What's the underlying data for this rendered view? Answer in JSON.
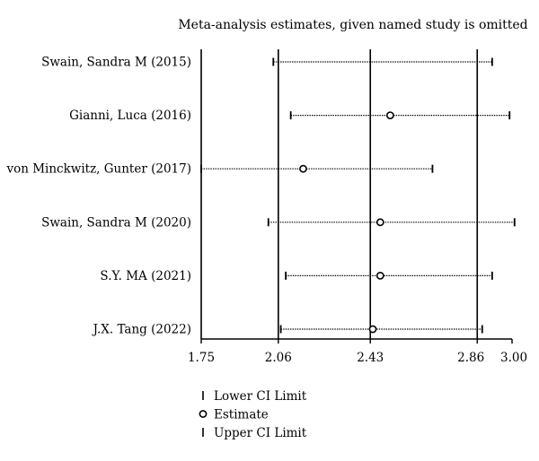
{
  "chart_data": {
    "type": "forest",
    "title": "Meta-analysis estimates, given named study is omitted",
    "xlim": [
      1.75,
      3.0
    ],
    "ticks": [
      {
        "value": 1.75,
        "label": "1.75"
      },
      {
        "value": 2.06,
        "label": "2.06"
      },
      {
        "value": 2.43,
        "label": "2.43"
      },
      {
        "value": 2.86,
        "label": "2.86"
      },
      {
        "value": 3.0,
        "label": "3.00"
      }
    ],
    "reference_lines": [
      2.06,
      2.43,
      2.86
    ],
    "studies": [
      {
        "label": "Swain, Sandra M (2015)",
        "lower": 2.04,
        "estimate": null,
        "upper": 2.92
      },
      {
        "label": "Gianni, Luca (2016)",
        "lower": 2.11,
        "estimate": 2.51,
        "upper": 2.99
      },
      {
        "label": "von Minckwitz, Gunter (2017)",
        "lower": 1.75,
        "estimate": 2.16,
        "upper": 2.68
      },
      {
        "label": "Swain, Sandra M (2020)",
        "lower": 2.02,
        "estimate": 2.47,
        "upper": 3.01
      },
      {
        "label": "S.Y. MA (2021)",
        "lower": 2.09,
        "estimate": 2.47,
        "upper": 2.92
      },
      {
        "label": "J.X. Tang (2022)",
        "lower": 2.07,
        "estimate": 2.44,
        "upper": 2.88
      }
    ],
    "legend": [
      {
        "symbol": "tick",
        "label": "Lower CI Limit"
      },
      {
        "symbol": "circle",
        "label": "Estimate"
      },
      {
        "symbol": "tick",
        "label": "Upper CI Limit"
      }
    ]
  }
}
